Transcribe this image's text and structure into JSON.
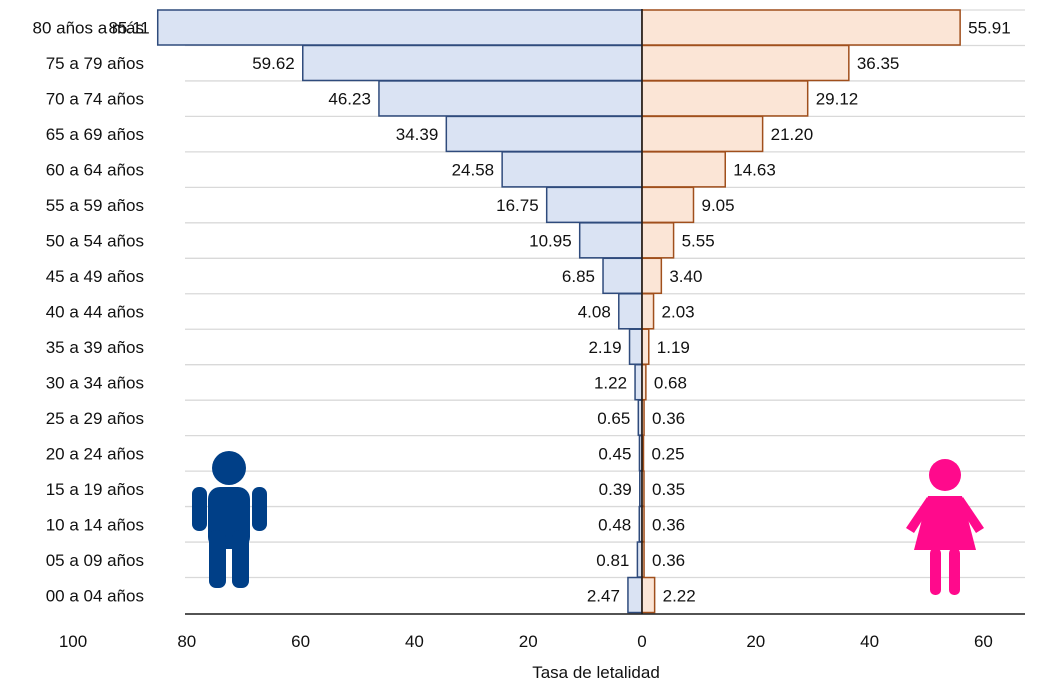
{
  "chart_data": {
    "type": "bar",
    "orientation": "horizontal-butterfly",
    "title": "",
    "xlabel": "Tasa de letalidad",
    "ylabel": "",
    "categories": [
      "80 años a más",
      "75 a 79 años",
      "70 a 74 años",
      "65 a 69 años",
      "60 a 64 años",
      "55 a 59 años",
      "50 a 54 años",
      "45 a 49 años",
      "40 a 44 años",
      "35 a 39 años",
      "30 a 34 años",
      "25 a 29 años",
      "20 a 24 años",
      "15 a 19 años",
      "10 a 14 años",
      "05 a 09 años",
      "00 a 04 años"
    ],
    "series": [
      {
        "side": "left",
        "icon": "male-figure-icon",
        "color": "#dae3f3",
        "stroke": "#2f4b7c",
        "icon_color": "#003f87",
        "values": [
          85.11,
          59.62,
          46.23,
          34.39,
          24.58,
          16.75,
          10.95,
          6.85,
          4.08,
          2.19,
          1.22,
          0.65,
          0.45,
          0.39,
          0.48,
          0.81,
          2.47
        ],
        "labels": [
          "85.11",
          "59.62",
          "46.23",
          "34.39",
          "24.58",
          "16.75",
          "10.95",
          "6.85",
          "4.08",
          "2.19",
          "1.22",
          "0.65",
          "0.45",
          "0.39",
          "0.48",
          "0.81",
          "2.47"
        ]
      },
      {
        "side": "right",
        "icon": "female-figure-icon",
        "color": "#fbe5d6",
        "stroke": "#a04f1c",
        "icon_color": "#ff0a8c",
        "values": [
          55.91,
          36.35,
          29.12,
          21.2,
          14.63,
          9.05,
          5.55,
          3.4,
          2.03,
          1.19,
          0.68,
          0.36,
          0.25,
          0.35,
          0.36,
          0.36,
          2.22
        ],
        "labels": [
          "55.91",
          "36.35",
          "29.12",
          "21.20",
          "14.63",
          "9.05",
          "5.55",
          "3.40",
          "2.03",
          "1.19",
          "0.68",
          "0.36",
          "0.25",
          "0.35",
          "0.36",
          "0.36",
          "2.22"
        ]
      }
    ],
    "xlim": [
      -100,
      80
    ],
    "x_ticks": [
      "100",
      "80",
      "60",
      "40",
      "20",
      "0",
      "20",
      "40",
      "60",
      "80"
    ],
    "grid": "horizontal",
    "grid_color": "#d9d9d9"
  }
}
